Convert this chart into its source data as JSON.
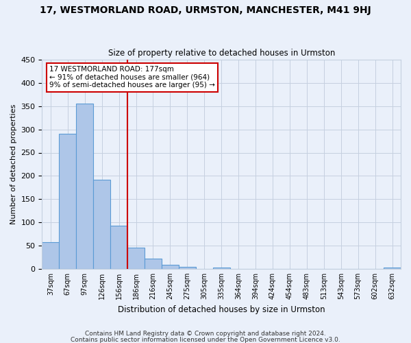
{
  "title": "17, WESTMORLAND ROAD, URMSTON, MANCHESTER, M41 9HJ",
  "subtitle": "Size of property relative to detached houses in Urmston",
  "xlabel": "Distribution of detached houses by size in Urmston",
  "ylabel": "Number of detached properties",
  "bar_values": [
    57,
    290,
    355,
    192,
    93,
    45,
    22,
    8,
    4,
    0,
    2,
    0,
    0,
    0,
    0,
    0,
    0,
    0,
    0,
    0,
    2
  ],
  "bin_labels": [
    "37sqm",
    "67sqm",
    "97sqm",
    "126sqm",
    "156sqm",
    "186sqm",
    "216sqm",
    "245sqm",
    "275sqm",
    "305sqm",
    "335sqm",
    "364sqm",
    "394sqm",
    "424sqm",
    "454sqm",
    "483sqm",
    "513sqm",
    "543sqm",
    "573sqm",
    "602sqm",
    "632sqm"
  ],
  "bar_color": "#aec6e8",
  "bar_edge_color": "#5b9bd5",
  "background_color": "#eaf0fa",
  "red_line_x": 4.5,
  "red_line_color": "#cc0000",
  "annotation_title": "17 WESTMORLAND ROAD: 177sqm",
  "annotation_line1": "← 91% of detached houses are smaller (964)",
  "annotation_line2": "9% of semi-detached houses are larger (95) →",
  "annotation_box_color": "#ffffff",
  "annotation_box_edge": "#cc0000",
  "ylim": [
    0,
    450
  ],
  "yticks": [
    0,
    50,
    100,
    150,
    200,
    250,
    300,
    350,
    400,
    450
  ],
  "footer_line1": "Contains HM Land Registry data © Crown copyright and database right 2024.",
  "footer_line2": "Contains public sector information licensed under the Open Government Licence v3.0."
}
